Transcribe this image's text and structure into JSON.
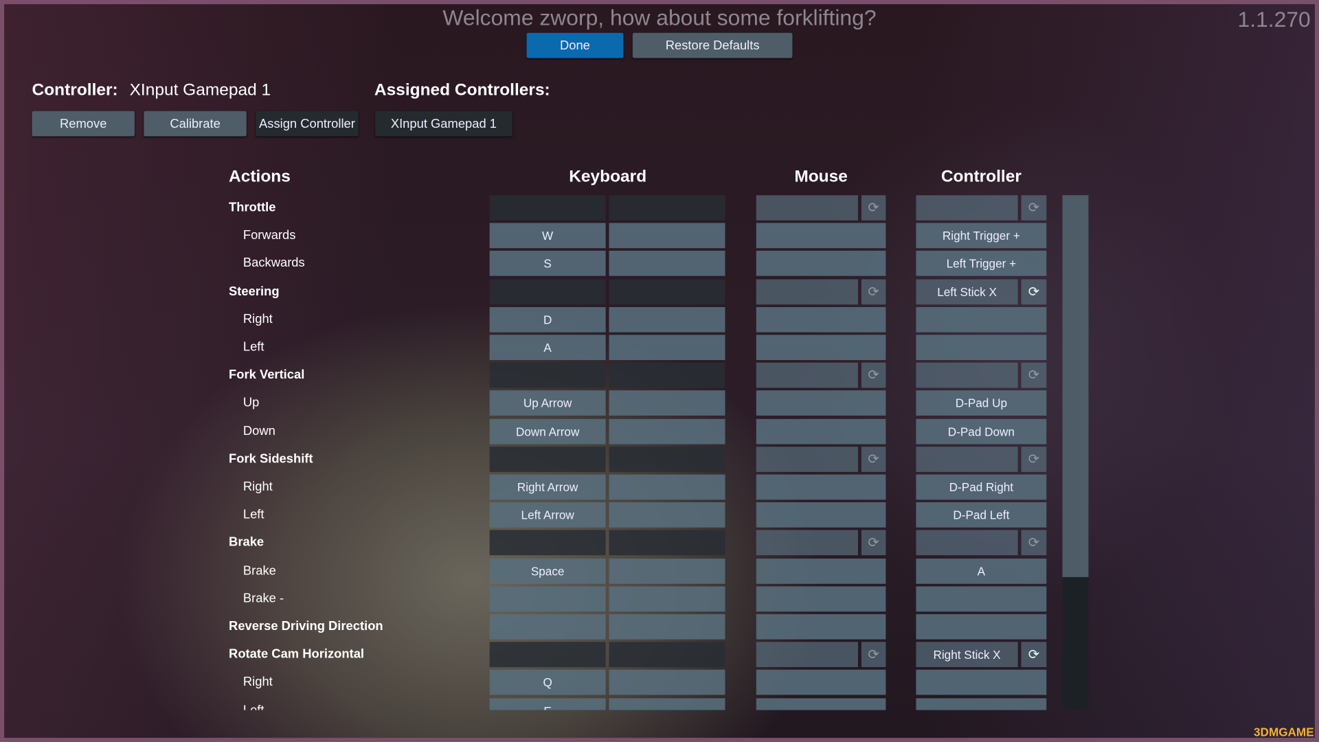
{
  "title": "Welcome zworp, how about some forklifting?",
  "version": "1.1.270",
  "top_buttons": {
    "done": "Done",
    "restore": "Restore Defaults"
  },
  "controller": {
    "label": "Controller:",
    "value": "XInput Gamepad 1",
    "assigned_label": "Assigned Controllers:",
    "buttons": {
      "remove": "Remove",
      "calibrate": "Calibrate",
      "assign": "Assign Controller"
    },
    "assigned": [
      "XInput Gamepad 1"
    ]
  },
  "columns": {
    "actions": "Actions",
    "keyboard": "Keyboard",
    "mouse": "Mouse",
    "controller": "Controller"
  },
  "icons": {
    "axis": "refresh-icon"
  },
  "rows": [
    {
      "action": "Throttle",
      "type": "header",
      "kb1": "",
      "kb2": "",
      "mouse": "",
      "ctrl": ""
    },
    {
      "action": "Forwards",
      "type": "sub",
      "kb1": "W",
      "kb2": "",
      "mouse": "",
      "ctrl": "Right Trigger +"
    },
    {
      "action": "Backwards",
      "type": "sub",
      "kb1": "S",
      "kb2": "",
      "mouse": "",
      "ctrl": "Left Trigger +"
    },
    {
      "action": "Steering",
      "type": "header",
      "kb1": "",
      "kb2": "",
      "mouse": "",
      "ctrl": "Left Stick X"
    },
    {
      "action": "Right",
      "type": "sub",
      "kb1": "D",
      "kb2": "",
      "mouse": "",
      "ctrl": ""
    },
    {
      "action": "Left",
      "type": "sub",
      "kb1": "A",
      "kb2": "",
      "mouse": "",
      "ctrl": ""
    },
    {
      "action": "Fork Vertical",
      "type": "header",
      "kb1": "",
      "kb2": "",
      "mouse": "",
      "ctrl": ""
    },
    {
      "action": "Up",
      "type": "sub",
      "kb1": "Up Arrow",
      "kb2": "",
      "mouse": "",
      "ctrl": "D-Pad Up"
    },
    {
      "action": "Down",
      "type": "sub",
      "kb1": "Down Arrow",
      "kb2": "",
      "mouse": "",
      "ctrl": "D-Pad Down"
    },
    {
      "action": "Fork Sideshift",
      "type": "header",
      "kb1": "",
      "kb2": "",
      "mouse": "",
      "ctrl": ""
    },
    {
      "action": "Right",
      "type": "sub",
      "kb1": "Right Arrow",
      "kb2": "",
      "mouse": "",
      "ctrl": "D-Pad Right"
    },
    {
      "action": "Left",
      "type": "sub",
      "kb1": "Left Arrow",
      "kb2": "",
      "mouse": "",
      "ctrl": "D-Pad Left"
    },
    {
      "action": "Brake",
      "type": "header",
      "kb1": "",
      "kb2": "",
      "mouse": "",
      "ctrl": ""
    },
    {
      "action": "Brake",
      "type": "sub",
      "kb1": "Space",
      "kb2": "",
      "mouse": "",
      "ctrl": "A"
    },
    {
      "action": "Brake -",
      "type": "sub",
      "kb1": "",
      "kb2": "",
      "mouse": "",
      "ctrl": ""
    },
    {
      "action": "Reverse Driving Direction",
      "type": "button",
      "kb1": "",
      "kb2": "",
      "mouse": "",
      "ctrl": ""
    },
    {
      "action": "Rotate Cam Horizontal",
      "type": "header",
      "kb1": "",
      "kb2": "",
      "mouse": "",
      "ctrl": "Right Stick X"
    },
    {
      "action": "Right",
      "type": "sub",
      "kb1": "Q",
      "kb2": "",
      "mouse": "",
      "ctrl": ""
    },
    {
      "action": "Left",
      "type": "sub",
      "kb1": "E",
      "kb2": "",
      "mouse": "",
      "ctrl": ""
    }
  ],
  "watermark": "3DMGAME"
}
